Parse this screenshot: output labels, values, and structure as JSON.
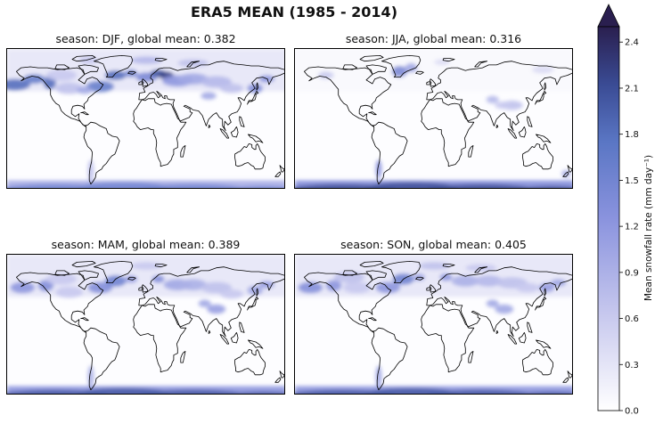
{
  "figure": {
    "title": "ERA5 MEAN (1985 - 2014)"
  },
  "panels": [
    {
      "season": "DJF",
      "label": "season: DJF, global mean: 0.382",
      "global_mean": 0.382
    },
    {
      "season": "JJA",
      "label": "season: JJA, global mean: 0.316",
      "global_mean": 0.316
    },
    {
      "season": "MAM",
      "label": "season: MAM, global mean: 0.389",
      "global_mean": 0.389
    },
    {
      "season": "SON",
      "label": "season: SON, global mean: 0.405",
      "global_mean": 0.405
    }
  ],
  "colorbar": {
    "label": "Mean snowfall rate (mm day⁻¹)",
    "min": 0.0,
    "max": 2.5,
    "extend": "max",
    "ticks": [
      "0.0",
      "0.3",
      "0.6",
      "0.9",
      "1.2",
      "1.5",
      "1.8",
      "2.1",
      "2.4"
    ],
    "tick_values": [
      0.0,
      0.3,
      0.6,
      0.9,
      1.2,
      1.5,
      1.8,
      2.1,
      2.4
    ],
    "color_low": "#ffffff",
    "color_mid": "#7a86d6",
    "color_high": "#2a1f4f"
  }
}
